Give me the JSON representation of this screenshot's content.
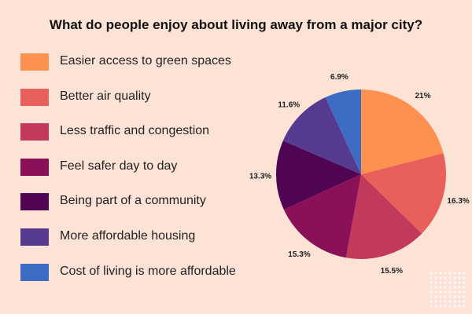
{
  "chart_data": {
    "type": "pie",
    "title": "What do people enjoy about living away from a major city?",
    "slices": [
      {
        "name": "Easier access to green spaces",
        "value": 21,
        "label": "21%",
        "color": "#fd9150"
      },
      {
        "name": "Better air quality",
        "value": 16.3,
        "label": "16.3%",
        "color": "#e85f5c"
      },
      {
        "name": "Less traffic and congestion",
        "value": 15.5,
        "label": "15.5%",
        "color": "#c13a5b"
      },
      {
        "name": "Feel safer day to day",
        "value": 15.3,
        "label": "15.3%",
        "color": "#8a1057"
      },
      {
        "name": "Being part of a community",
        "value": 13.3,
        "label": "13.3%",
        "color": "#4f0551"
      },
      {
        "name": "More affordable housing",
        "value": 11.6,
        "label": "11.6%",
        "color": "#553a8f"
      },
      {
        "name": "Cost of living is more affordable",
        "value": 6.9,
        "label": "6.9%",
        "color": "#3c6cc4"
      }
    ],
    "legend_position": "left",
    "start_angle": "12 o'clock",
    "direction": "clockwise"
  }
}
